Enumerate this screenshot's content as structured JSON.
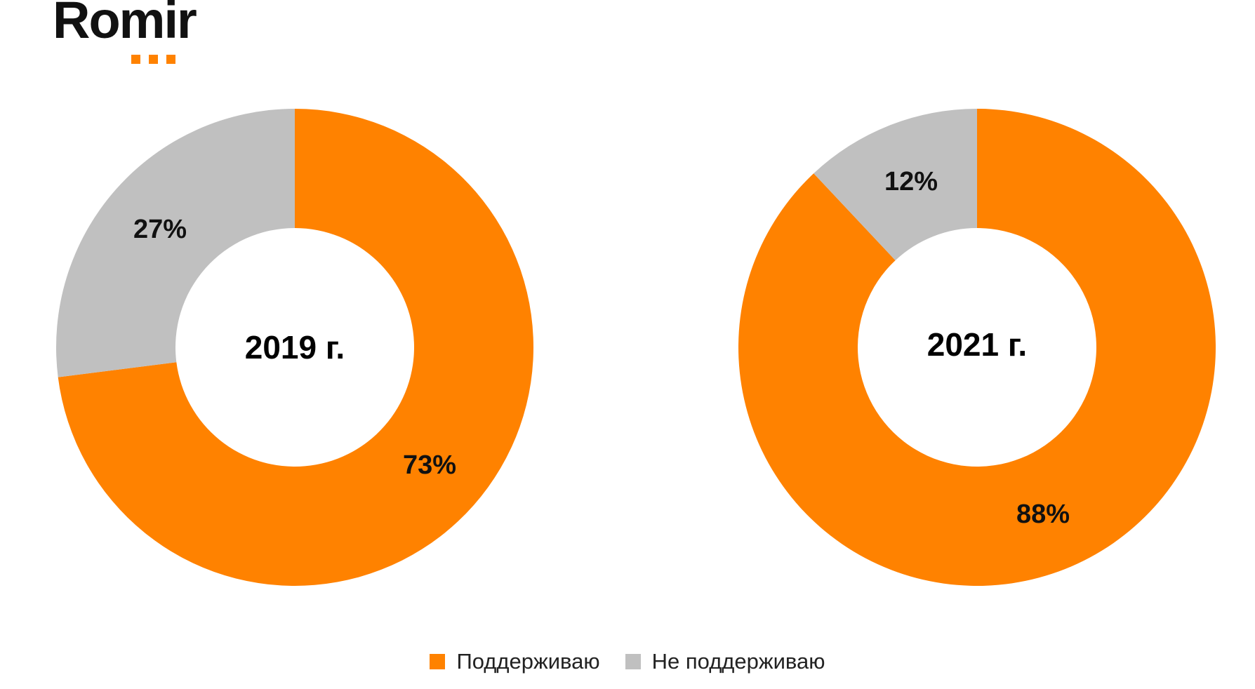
{
  "brand": {
    "logo_text": "Romir",
    "accent_color": "#ff8200"
  },
  "colors": {
    "support": "#ff8200",
    "not_support": "#c0c0c0"
  },
  "legend": [
    {
      "label": "Поддерживаю",
      "color": "#ff8200"
    },
    {
      "label": "Не поддерживаю",
      "color": "#c0c0c0"
    }
  ],
  "chart_data": [
    {
      "type": "pie",
      "variant": "donut",
      "center_label": "2019 г.",
      "categories": [
        "Поддерживаю",
        "Не поддерживаю"
      ],
      "values": [
        73,
        27
      ],
      "value_labels": [
        "73%",
        "27%"
      ],
      "colors": [
        "#ff8200",
        "#c0c0c0"
      ],
      "start": "12 o'clock, clockwise"
    },
    {
      "type": "pie",
      "variant": "donut",
      "center_label": "2021 г.",
      "categories": [
        "Поддерживаю",
        "Не поддерживаю"
      ],
      "values": [
        88,
        12
      ],
      "value_labels": [
        "88%",
        "12%"
      ],
      "colors": [
        "#ff8200",
        "#c0c0c0"
      ],
      "start": "12 o'clock, clockwise"
    }
  ]
}
